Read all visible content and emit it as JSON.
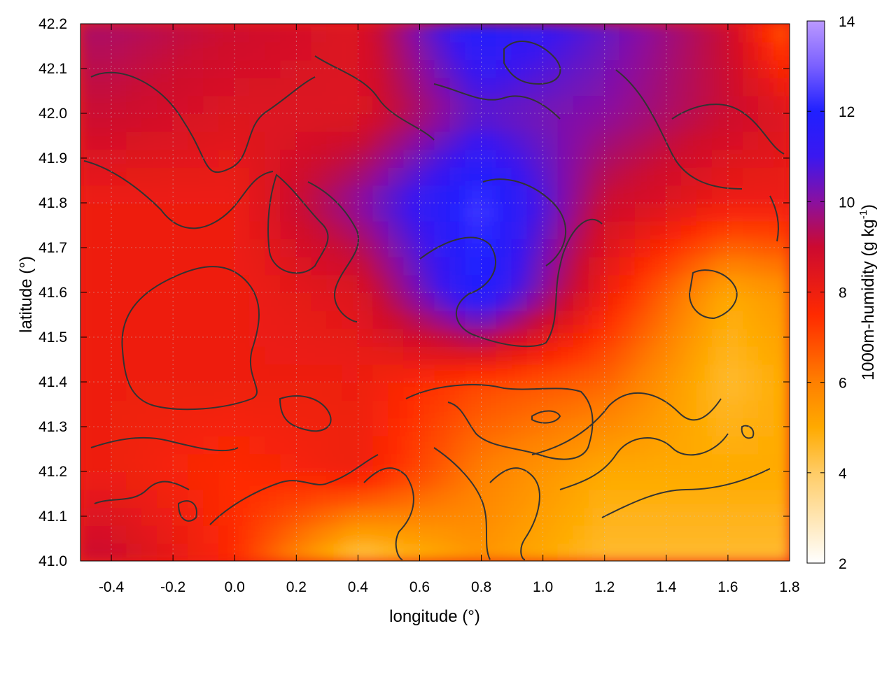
{
  "chart_data": {
    "type": "heatmap",
    "xlabel": "longitude (°)",
    "ylabel": "latitude (°)",
    "colorbar_label": "1000m-humidity (g kg",
    "colorbar_label_sup": "-1",
    "colorbar_label_end": ")",
    "xlim": [
      -0.5,
      1.8
    ],
    "ylim": [
      41.0,
      42.2
    ],
    "zlim": [
      2,
      14
    ],
    "x_ticks": [
      -0.4,
      -0.2,
      0.0,
      0.2,
      0.4,
      0.6,
      0.8,
      1.0,
      1.2,
      1.4,
      1.6,
      1.8
    ],
    "x_tick_labels": [
      "-0.4",
      "-0.2",
      "0.0",
      "0.2",
      "0.4",
      "0.6",
      "0.8",
      "1.0",
      "1.2",
      "1.4",
      "1.6",
      "1.8"
    ],
    "y_ticks": [
      41.0,
      41.1,
      41.2,
      41.3,
      41.4,
      41.5,
      41.6,
      41.7,
      41.8,
      41.9,
      42.0,
      42.1,
      42.2
    ],
    "y_tick_labels": [
      "41.0",
      "41.1",
      "41.2",
      "41.3",
      "41.4",
      "41.5",
      "41.6",
      "41.7",
      "41.8",
      "41.9",
      "42.0",
      "42.1",
      "42.2"
    ],
    "colorbar_ticks": [
      2,
      4,
      6,
      8,
      10,
      12,
      14
    ],
    "colorbar_tick_labels": [
      "2",
      "4",
      "6",
      "8",
      "10",
      "12",
      "14"
    ],
    "colormap": [
      {
        "value": 2,
        "color": "#ffffff"
      },
      {
        "value": 4,
        "color": "#ffcc66"
      },
      {
        "value": 5,
        "color": "#ffaa00"
      },
      {
        "value": 6,
        "color": "#ff8000"
      },
      {
        "value": 7.5,
        "color": "#ff2a00"
      },
      {
        "value": 9,
        "color": "#cc0a30"
      },
      {
        "value": 10,
        "color": "#8a10a0"
      },
      {
        "value": 11,
        "color": "#3a18f0"
      },
      {
        "value": 12,
        "color": "#2020ff"
      },
      {
        "value": 13,
        "color": "#7a60ff"
      },
      {
        "value": 14,
        "color": "#bb99ff"
      }
    ],
    "grid": true,
    "grid_values_lon": [
      -0.4,
      0.0,
      0.4,
      0.8,
      1.2,
      1.6,
      1.8
    ],
    "grid_values_lat": [
      41.0,
      41.2,
      41.4,
      41.6,
      41.8,
      42.0,
      42.2
    ],
    "grid_humidity": [
      [
        9.0,
        7.5,
        4.0,
        5.5,
        4.5,
        4.5,
        4.5
      ],
      [
        8.0,
        7.5,
        8.0,
        6.0,
        5.0,
        5.0,
        5.0
      ],
      [
        8.0,
        8.0,
        8.0,
        7.0,
        6.5,
        4.5,
        5.0
      ],
      [
        8.0,
        8.0,
        8.5,
        12.0,
        8.0,
        5.0,
        5.5
      ],
      [
        8.0,
        8.0,
        10.0,
        12.5,
        9.0,
        8.0,
        8.0
      ],
      [
        9.0,
        8.5,
        8.5,
        10.5,
        10.0,
        9.0,
        8.5
      ],
      [
        9.5,
        9.0,
        8.5,
        12.0,
        10.5,
        9.0,
        6.5
      ]
    ]
  }
}
